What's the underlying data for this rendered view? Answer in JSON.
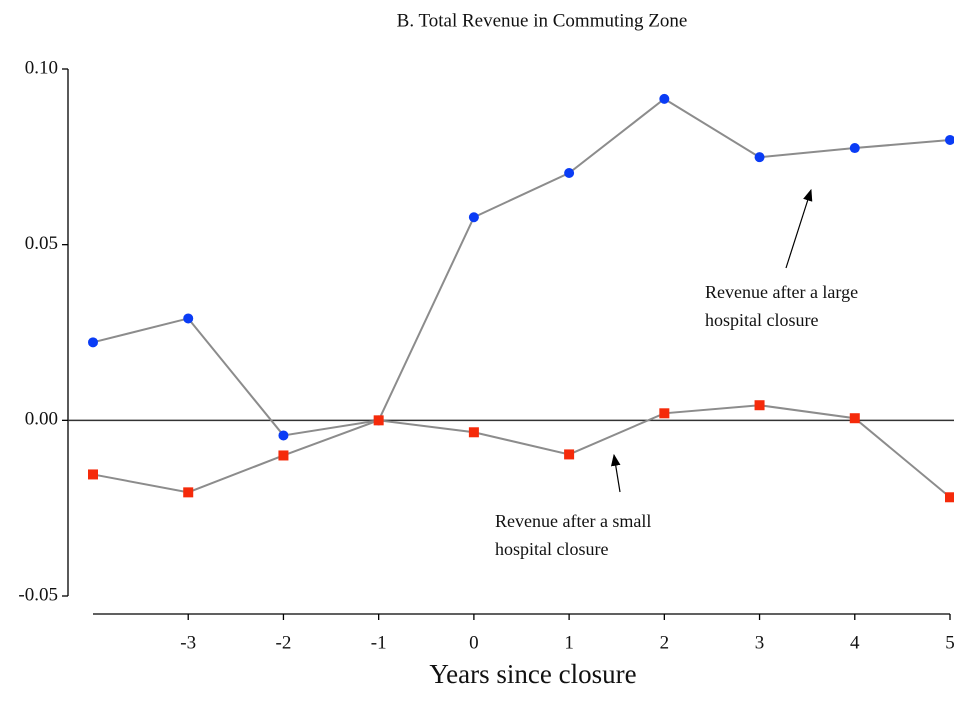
{
  "chart_data": {
    "type": "line",
    "title": "B. Total Revenue in Commuting Zone",
    "x_label": "Years since closure",
    "x": [
      -4,
      -3,
      -2,
      -1,
      0,
      1,
      2,
      3,
      4,
      5
    ],
    "series": [
      {
        "color": "#0a3cf5",
        "marker": "circle",
        "values": [
          0.0222,
          0.029,
          -0.0043,
          0,
          0.0578,
          0.0704,
          0.0915,
          0.0749,
          0.0775,
          0.0798
        ]
      },
      {
        "color": "#f52a0a",
        "marker": "square",
        "values": [
          -0.0154,
          -0.0205,
          -0.01,
          0,
          -0.0034,
          -0.0097,
          0.002,
          0.0043,
          0.0006,
          -0.0219
        ]
      }
    ],
    "line_color": "#8c8c8c",
    "xlim": [
      -4,
      5
    ],
    "xticks": [
      -3,
      -2,
      -1,
      0,
      1,
      2,
      3,
      4,
      5
    ],
    "ylim": [
      -0.05,
      0.1
    ],
    "yticks": [
      {
        "value": -0.05,
        "label": "-0.05"
      },
      {
        "value": 0,
        "label": "0.00"
      },
      {
        "value": 0.05,
        "label": "0.05"
      },
      {
        "value": 0.1,
        "label": "0.10"
      }
    ],
    "zero_line": true,
    "annotations": [
      {
        "lines": [
          "Revenue after a large",
          "hospital closure"
        ]
      },
      {
        "lines": [
          "Revenue after a small",
          "hospital closure"
        ]
      }
    ]
  }
}
